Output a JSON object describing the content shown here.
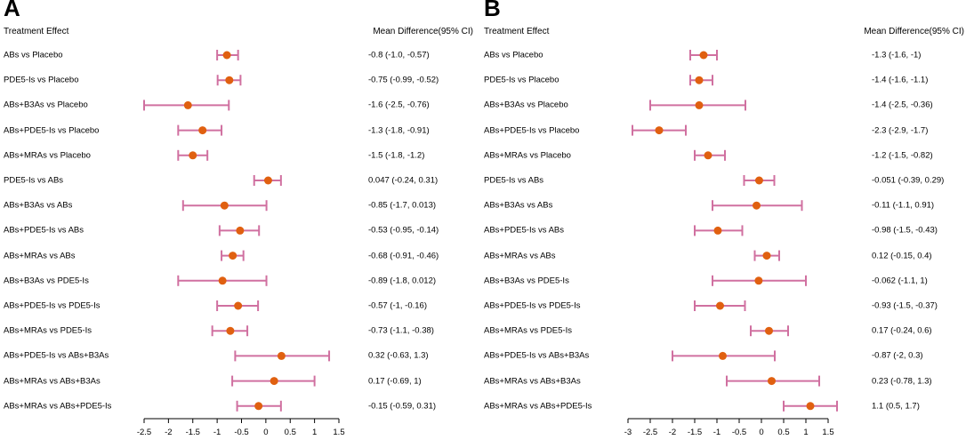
{
  "chart_data": [
    {
      "type": "forest",
      "panel": "A",
      "header_left": "Treatment Effect",
      "header_right": "Mean Difference(95% CI)",
      "xlim": [
        -2.5,
        1.5
      ],
      "ticks": [
        -2.5,
        -2,
        -1.5,
        -1,
        -0.5,
        0,
        0.5,
        1,
        1.5
      ],
      "tick_labels": [
        "-2.5",
        "-2",
        "-1.5",
        "-1",
        "-0.5",
        "0",
        "0.5",
        "1",
        "1.5"
      ],
      "rows": [
        {
          "label": "ABs vs Placebo",
          "est": -0.8,
          "lo": -1.0,
          "hi": -0.57,
          "ci_text": "-0.8 (-1.0, -0.57)"
        },
        {
          "label": "PDE5-Is vs Placebo",
          "est": -0.75,
          "lo": -0.99,
          "hi": -0.52,
          "ci_text": "-0.75 (-0.99, -0.52)"
        },
        {
          "label": "ABs+B3As vs Placebo",
          "est": -1.6,
          "lo": -2.5,
          "hi": -0.76,
          "ci_text": "-1.6 (-2.5, -0.76)"
        },
        {
          "label": "ABs+PDE5-Is vs Placebo",
          "est": -1.3,
          "lo": -1.8,
          "hi": -0.91,
          "ci_text": "-1.3 (-1.8, -0.91)"
        },
        {
          "label": "ABs+MRAs vs Placebo",
          "est": -1.5,
          "lo": -1.8,
          "hi": -1.2,
          "ci_text": "-1.5 (-1.8, -1.2)"
        },
        {
          "label": "PDE5-Is vs ABs",
          "est": 0.047,
          "lo": -0.24,
          "hi": 0.31,
          "ci_text": "0.047 (-0.24, 0.31)"
        },
        {
          "label": "ABs+B3As vs ABs",
          "est": -0.85,
          "lo": -1.7,
          "hi": 0.013,
          "ci_text": "-0.85 (-1.7, 0.013)"
        },
        {
          "label": "ABs+PDE5-Is vs ABs",
          "est": -0.53,
          "lo": -0.95,
          "hi": -0.14,
          "ci_text": "-0.53 (-0.95, -0.14)"
        },
        {
          "label": "ABs+MRAs vs ABs",
          "est": -0.68,
          "lo": -0.91,
          "hi": -0.46,
          "ci_text": "-0.68 (-0.91, -0.46)"
        },
        {
          "label": "ABs+B3As vs PDE5-Is",
          "est": -0.89,
          "lo": -1.8,
          "hi": 0.012,
          "ci_text": "-0.89 (-1.8, 0.012)"
        },
        {
          "label": "ABs+PDE5-Is vs PDE5-Is",
          "est": -0.57,
          "lo": -1.0,
          "hi": -0.16,
          "ci_text": "-0.57 (-1, -0.16)"
        },
        {
          "label": "ABs+MRAs vs PDE5-Is",
          "est": -0.73,
          "lo": -1.1,
          "hi": -0.38,
          "ci_text": "-0.73 (-1.1, -0.38)"
        },
        {
          "label": "ABs+PDE5-Is vs ABs+B3As",
          "est": 0.32,
          "lo": -0.63,
          "hi": 1.3,
          "ci_text": "0.32 (-0.63, 1.3)"
        },
        {
          "label": "ABs+MRAs vs ABs+B3As",
          "est": 0.17,
          "lo": -0.69,
          "hi": 1.0,
          "ci_text": "0.17 (-0.69, 1)"
        },
        {
          "label": "ABs+MRAs vs ABs+PDE5-Is",
          "est": -0.15,
          "lo": -0.59,
          "hi": 0.31,
          "ci_text": "-0.15 (-0.59, 0.31)"
        }
      ]
    },
    {
      "type": "forest",
      "panel": "B",
      "header_left": "Treatment Effect",
      "header_right": "Mean Difference(95% CI)",
      "xlim": [
        -3,
        1.5
      ],
      "ticks": [
        -3,
        -2.5,
        -2,
        -1.5,
        -1,
        -0.5,
        0,
        0.5,
        1,
        1.5
      ],
      "tick_labels": [
        "-3",
        "-2.5",
        "-2",
        "-1.5",
        "-1",
        "-0.5",
        "0",
        "0.5",
        "1",
        "1.5"
      ],
      "rows": [
        {
          "label": "ABs vs Placebo",
          "est": -1.3,
          "lo": -1.6,
          "hi": -1.0,
          "ci_text": "-1.3 (-1.6, -1)"
        },
        {
          "label": "PDE5-Is vs Placebo",
          "est": -1.4,
          "lo": -1.6,
          "hi": -1.1,
          "ci_text": "-1.4 (-1.6, -1.1)"
        },
        {
          "label": "ABs+B3As vs Placebo",
          "est": -1.4,
          "lo": -2.5,
          "hi": -0.36,
          "ci_text": "-1.4 (-2.5, -0.36)"
        },
        {
          "label": "ABs+PDE5-Is vs Placebo",
          "est": -2.3,
          "lo": -2.9,
          "hi": -1.7,
          "ci_text": "-2.3 (-2.9, -1.7)"
        },
        {
          "label": "ABs+MRAs vs Placebo",
          "est": -1.2,
          "lo": -1.5,
          "hi": -0.82,
          "ci_text": "-1.2 (-1.5, -0.82)"
        },
        {
          "label": "PDE5-Is vs ABs",
          "est": -0.051,
          "lo": -0.39,
          "hi": 0.29,
          "ci_text": "-0.051 (-0.39, 0.29)"
        },
        {
          "label": "ABs+B3As vs ABs",
          "est": -0.11,
          "lo": -1.1,
          "hi": 0.91,
          "ci_text": "-0.11 (-1.1, 0.91)"
        },
        {
          "label": "ABs+PDE5-Is vs ABs",
          "est": -0.98,
          "lo": -1.5,
          "hi": -0.43,
          "ci_text": "-0.98 (-1.5, -0.43)"
        },
        {
          "label": "ABs+MRAs vs ABs",
          "est": 0.12,
          "lo": -0.15,
          "hi": 0.4,
          "ci_text": "0.12 (-0.15, 0.4)"
        },
        {
          "label": "ABs+B3As vs PDE5-Is",
          "est": -0.062,
          "lo": -1.1,
          "hi": 1.0,
          "ci_text": "-0.062 (-1.1, 1)"
        },
        {
          "label": "ABs+PDE5-Is vs PDE5-Is",
          "est": -0.93,
          "lo": -1.5,
          "hi": -0.37,
          "ci_text": "-0.93 (-1.5, -0.37)"
        },
        {
          "label": "ABs+MRAs vs PDE5-Is",
          "est": 0.17,
          "lo": -0.24,
          "hi": 0.6,
          "ci_text": "0.17 (-0.24, 0.6)"
        },
        {
          "label": "ABs+PDE5-Is vs ABs+B3As",
          "est": -0.87,
          "lo": -2.0,
          "hi": 0.3,
          "ci_text": "-0.87 (-2, 0.3)"
        },
        {
          "label": "ABs+MRAs vs ABs+B3As",
          "est": 0.23,
          "lo": -0.78,
          "hi": 1.3,
          "ci_text": "0.23 (-0.78, 1.3)"
        },
        {
          "label": "ABs+MRAs vs ABs+PDE5-Is",
          "est": 1.1,
          "lo": 0.5,
          "hi": 1.7,
          "ci_text": "1.1 (0.5, 1.7)"
        }
      ]
    }
  ],
  "colors": {
    "ci_line": "#d070a0",
    "point": "#e06010",
    "axis": "#000000"
  }
}
